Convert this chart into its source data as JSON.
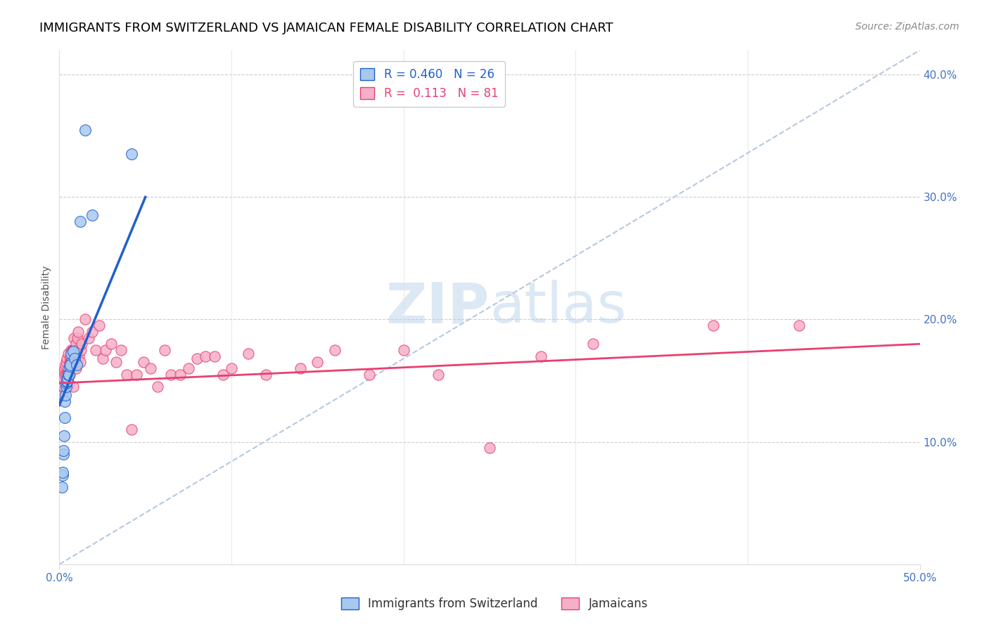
{
  "title": "IMMIGRANTS FROM SWITZERLAND VS JAMAICAN FEMALE DISABILITY CORRELATION CHART",
  "source": "Source: ZipAtlas.com",
  "ylabel": "Female Disability",
  "right_yticklabels": [
    "",
    "10.0%",
    "20.0%",
    "30.0%",
    "40.0%"
  ],
  "right_ytick_vals": [
    0.0,
    0.1,
    0.2,
    0.3,
    0.4
  ],
  "xmin": 0.0,
  "xmax": 0.5,
  "ymin": 0.0,
  "ymax": 0.42,
  "legend_blue_r": "R = 0.460",
  "legend_blue_n": "N = 26",
  "legend_pink_r": "R =  0.113",
  "legend_pink_n": "N = 81",
  "blue_color": "#a8c8f0",
  "pink_color": "#f5b0c8",
  "trendline_blue_color": "#2060cc",
  "trendline_pink_color": "#e84070",
  "trendline_diagonal_color": "#b8c8e0",
  "watermark_color": "#dde8f5",
  "title_fontsize": 13,
  "axis_label_fontsize": 10,
  "tick_fontsize": 11,
  "source_fontsize": 10,
  "blue_scatter_x": [
    0.0015,
    0.0018,
    0.002,
    0.0022,
    0.0025,
    0.0028,
    0.003,
    0.0033,
    0.0035,
    0.0038,
    0.004,
    0.0042,
    0.0045,
    0.0048,
    0.005,
    0.0055,
    0.006,
    0.0065,
    0.007,
    0.008,
    0.009,
    0.01,
    0.012,
    0.015,
    0.042,
    0.019
  ],
  "blue_scatter_y": [
    0.063,
    0.073,
    0.075,
    0.09,
    0.093,
    0.105,
    0.12,
    0.133,
    0.138,
    0.145,
    0.148,
    0.149,
    0.15,
    0.152,
    0.155,
    0.155,
    0.162,
    0.163,
    0.172,
    0.174,
    0.168,
    0.163,
    0.28,
    0.355,
    0.335,
    0.285
  ],
  "pink_scatter_x": [
    0.001,
    0.0012,
    0.0015,
    0.0018,
    0.002,
    0.0022,
    0.0025,
    0.0028,
    0.003,
    0.0032,
    0.0035,
    0.0038,
    0.004,
    0.0042,
    0.0045,
    0.0048,
    0.005,
    0.0052,
    0.0055,
    0.0058,
    0.006,
    0.0062,
    0.0065,
    0.0068,
    0.007,
    0.0072,
    0.0075,
    0.0078,
    0.008,
    0.0082,
    0.0085,
    0.0088,
    0.009,
    0.0092,
    0.0095,
    0.0098,
    0.01,
    0.0105,
    0.011,
    0.0115,
    0.012,
    0.0125,
    0.013,
    0.015,
    0.017,
    0.019,
    0.021,
    0.023,
    0.025,
    0.027,
    0.03,
    0.033,
    0.036,
    0.039,
    0.042,
    0.045,
    0.049,
    0.053,
    0.057,
    0.061,
    0.065,
    0.07,
    0.075,
    0.08,
    0.085,
    0.09,
    0.095,
    0.1,
    0.11,
    0.12,
    0.14,
    0.15,
    0.16,
    0.18,
    0.2,
    0.22,
    0.25,
    0.28,
    0.31,
    0.38,
    0.43
  ],
  "pink_scatter_y": [
    0.148,
    0.14,
    0.145,
    0.138,
    0.148,
    0.145,
    0.152,
    0.158,
    0.16,
    0.155,
    0.163,
    0.155,
    0.165,
    0.155,
    0.168,
    0.145,
    0.172,
    0.16,
    0.148,
    0.165,
    0.155,
    0.17,
    0.165,
    0.165,
    0.175,
    0.162,
    0.168,
    0.175,
    0.145,
    0.175,
    0.185,
    0.168,
    0.175,
    0.165,
    0.18,
    0.16,
    0.175,
    0.185,
    0.19,
    0.17,
    0.165,
    0.175,
    0.18,
    0.2,
    0.185,
    0.19,
    0.175,
    0.195,
    0.168,
    0.175,
    0.18,
    0.165,
    0.175,
    0.155,
    0.11,
    0.155,
    0.165,
    0.16,
    0.145,
    0.175,
    0.155,
    0.155,
    0.16,
    0.168,
    0.17,
    0.17,
    0.155,
    0.16,
    0.172,
    0.155,
    0.16,
    0.165,
    0.175,
    0.155,
    0.175,
    0.155,
    0.095,
    0.17,
    0.18,
    0.195,
    0.195
  ],
  "blue_trendline_x": [
    0.0,
    0.05
  ],
  "blue_trendline_y": [
    0.13,
    0.3
  ],
  "pink_trendline_x": [
    0.0,
    0.5
  ],
  "pink_trendline_y": [
    0.148,
    0.18
  ],
  "diag_line_x": [
    0.0,
    0.5
  ],
  "diag_line_y": [
    0.0,
    0.42
  ]
}
